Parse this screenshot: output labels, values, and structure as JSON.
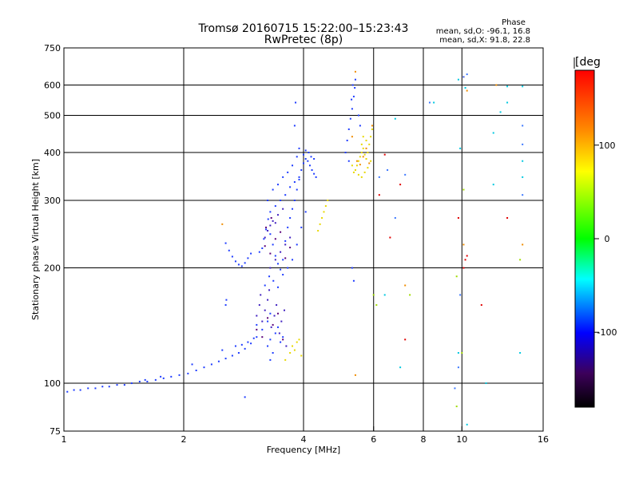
{
  "chart_data": {
    "type": "scatter",
    "title": "Tromsø 20160715 15:22:00–15:23:43",
    "subtitle": "RwPretec (8p)",
    "xlabel": "Frequency [MHz]",
    "ylabel": "Stationary phase Virtual Height [km]",
    "x_scale": "log",
    "y_scale": "log",
    "xlim": [
      1,
      16
    ],
    "ylim": [
      75,
      750
    ],
    "x_ticks": [
      1,
      2,
      4,
      6,
      8,
      10,
      16
    ],
    "y_ticks": [
      75,
      100,
      200,
      300,
      400,
      500,
      600,
      750
    ],
    "x_gridlines": [
      2,
      4,
      6,
      8,
      10
    ],
    "y_gridlines": [
      100,
      200,
      300,
      400,
      500,
      600
    ],
    "grid": true,
    "phase_stats": {
      "title": "Phase",
      "line_o": "mean, sd,O: -96.1, 16.8",
      "line_x": "mean, sd,X:  91.8, 22.8"
    },
    "colorbar": {
      "label": "[deg",
      "min": -180,
      "max": 180,
      "ticks": [
        100,
        0,
        -100
      ],
      "tick_labels": [
        "100",
        "0",
        "-100"
      ],
      "colors": [
        "#ff0000",
        "#ff8c00",
        "#ffff00",
        "#00ff00",
        "#00ffff",
        "#0000ff",
        "#3c005a",
        "#000000"
      ]
    },
    "series": [
      {
        "color_name": "blue",
        "color": "#1e3cff",
        "points": [
          [
            1.02,
            95
          ],
          [
            1.06,
            96
          ],
          [
            1.1,
            96
          ],
          [
            1.15,
            97
          ],
          [
            1.2,
            97
          ],
          [
            1.25,
            98
          ],
          [
            1.3,
            98
          ],
          [
            1.36,
            99
          ],
          [
            1.42,
            99
          ],
          [
            1.48,
            100
          ],
          [
            1.55,
            101
          ],
          [
            1.62,
            101
          ],
          [
            1.7,
            102
          ],
          [
            1.78,
            103
          ],
          [
            1.86,
            104
          ],
          [
            1.95,
            105
          ],
          [
            2.05,
            106
          ],
          [
            2.15,
            108
          ],
          [
            2.25,
            110
          ],
          [
            2.35,
            112
          ],
          [
            2.45,
            114
          ],
          [
            2.55,
            116
          ],
          [
            2.65,
            118
          ],
          [
            2.75,
            120
          ],
          [
            2.85,
            123
          ],
          [
            2.95,
            127
          ],
          [
            3.05,
            132
          ],
          [
            3.15,
            138
          ],
          [
            3.25,
            145
          ],
          [
            3.3,
            152
          ],
          [
            1.6,
            102
          ],
          [
            1.75,
            104
          ],
          [
            2.1,
            112
          ],
          [
            2.5,
            122
          ],
          [
            2.7,
            125
          ],
          [
            2.8,
            126
          ],
          [
            2.9,
            128
          ],
          [
            3.0,
            131
          ],
          [
            2.55,
            160
          ],
          [
            2.56,
            165
          ],
          [
            3.05,
            142
          ],
          [
            2.55,
            232
          ],
          [
            2.6,
            222
          ],
          [
            2.65,
            214
          ],
          [
            2.7,
            208
          ],
          [
            2.75,
            204
          ],
          [
            2.8,
            202
          ],
          [
            2.85,
            206
          ],
          [
            2.9,
            212
          ],
          [
            2.95,
            218
          ],
          [
            3.15,
            225
          ],
          [
            3.18,
            238
          ],
          [
            3.22,
            252
          ],
          [
            3.26,
            268
          ],
          [
            3.3,
            245
          ],
          [
            3.35,
            230
          ],
          [
            3.4,
            215
          ],
          [
            3.45,
            205
          ],
          [
            3.5,
            198
          ],
          [
            3.55,
            210
          ],
          [
            3.6,
            235
          ],
          [
            3.65,
            255
          ],
          [
            3.7,
            270
          ],
          [
            3.75,
            285
          ],
          [
            3.8,
            300
          ],
          [
            3.85,
            320
          ],
          [
            3.9,
            340
          ],
          [
            3.95,
            360
          ],
          [
            4.0,
            375
          ],
          [
            4.05,
            385
          ],
          [
            4.1,
            380
          ],
          [
            4.15,
            370
          ],
          [
            4.2,
            360
          ],
          [
            4.25,
            352
          ],
          [
            4.3,
            345
          ],
          [
            4.0,
            395
          ],
          [
            4.05,
            405
          ],
          [
            4.12,
            400
          ],
          [
            4.18,
            390
          ],
          [
            4.25,
            385
          ],
          [
            3.3,
            280
          ],
          [
            3.4,
            290
          ],
          [
            3.5,
            300
          ],
          [
            3.6,
            310
          ],
          [
            3.7,
            325
          ],
          [
            3.8,
            335
          ],
          [
            3.9,
            345
          ],
          [
            3.2,
            180
          ],
          [
            3.28,
            190
          ],
          [
            3.36,
            185
          ],
          [
            3.45,
            178
          ],
          [
            3.55,
            192
          ],
          [
            3.65,
            200
          ],
          [
            3.75,
            210
          ],
          [
            3.85,
            230
          ],
          [
            3.95,
            255
          ],
          [
            4.05,
            280
          ],
          [
            3.25,
            300
          ],
          [
            3.35,
            320
          ],
          [
            3.45,
            330
          ],
          [
            3.55,
            345
          ],
          [
            3.65,
            355
          ],
          [
            3.75,
            370
          ],
          [
            3.85,
            390
          ],
          [
            3.9,
            410
          ],
          [
            3.8,
            470
          ],
          [
            3.82,
            540
          ],
          [
            5.1,
            400
          ],
          [
            5.15,
            430
          ],
          [
            5.2,
            460
          ],
          [
            5.25,
            490
          ],
          [
            5.3,
            520
          ],
          [
            5.35,
            560
          ],
          [
            5.38,
            590
          ],
          [
            5.4,
            620
          ],
          [
            5.28,
            550
          ],
          [
            5.32,
            600
          ],
          [
            5.5,
            500
          ],
          [
            5.55,
            470
          ],
          [
            5.2,
            380
          ],
          [
            3.25,
            125
          ],
          [
            3.3,
            130
          ],
          [
            3.35,
            120
          ],
          [
            3.4,
            135
          ],
          [
            3.45,
            140
          ],
          [
            3.5,
            128
          ],
          [
            3.55,
            132
          ],
          [
            3.3,
            115
          ],
          [
            2.85,
            92
          ],
          [
            5.35,
            185
          ],
          [
            5.3,
            200
          ],
          [
            3.1,
            220
          ]
        ]
      },
      {
        "color_name": "indigo",
        "color": "#4020c0",
        "points": [
          [
            3.05,
            150
          ],
          [
            3.1,
            160
          ],
          [
            3.12,
            170
          ],
          [
            3.15,
            145
          ],
          [
            3.2,
            155
          ],
          [
            3.25,
            165
          ],
          [
            3.28,
            175
          ],
          [
            3.32,
            140
          ],
          [
            3.38,
            150
          ],
          [
            3.42,
            160
          ],
          [
            3.48,
            135
          ],
          [
            3.52,
            145
          ],
          [
            3.58,
            155
          ],
          [
            3.62,
            125
          ],
          [
            3.3,
            200
          ],
          [
            3.4,
            210
          ],
          [
            3.5,
            220
          ],
          [
            3.6,
            230
          ],
          [
            3.7,
            240
          ],
          [
            3.25,
            250
          ],
          [
            3.35,
            265
          ],
          [
            3.45,
            275
          ],
          [
            3.55,
            285
          ],
          [
            3.2,
            240
          ],
          [
            3.3,
            258
          ],
          [
            3.4,
            262
          ]
        ]
      },
      {
        "color_name": "purple",
        "color": "#5a0078",
        "points": [
          [
            3.05,
            138
          ],
          [
            3.15,
            132
          ],
          [
            3.25,
            148
          ],
          [
            3.35,
            142
          ],
          [
            3.45,
            152
          ],
          [
            3.55,
            130
          ],
          [
            3.2,
            228
          ],
          [
            3.3,
            218
          ],
          [
            3.4,
            238
          ],
          [
            3.5,
            248
          ],
          [
            3.6,
            212
          ],
          [
            3.7,
            226
          ],
          [
            3.22,
            255
          ],
          [
            3.32,
            270
          ]
        ]
      },
      {
        "color_name": "yellow",
        "color": "#e8d800",
        "points": [
          [
            5.4,
            360
          ],
          [
            5.45,
            370
          ],
          [
            5.5,
            380
          ],
          [
            5.55,
            390
          ],
          [
            5.6,
            400
          ],
          [
            5.65,
            410
          ],
          [
            5.7,
            395
          ],
          [
            5.75,
            385
          ],
          [
            5.8,
            400
          ],
          [
            5.85,
            420
          ],
          [
            5.9,
            440
          ],
          [
            5.95,
            460
          ],
          [
            5.5,
            350
          ],
          [
            5.6,
            345
          ],
          [
            5.7,
            355
          ],
          [
            5.8,
            365
          ],
          [
            5.6,
            420
          ],
          [
            5.65,
            440
          ],
          [
            5.75,
            430
          ],
          [
            4.4,
            260
          ],
          [
            4.45,
            270
          ],
          [
            4.5,
            280
          ],
          [
            4.55,
            290
          ],
          [
            4.6,
            300
          ],
          [
            4.35,
            250
          ],
          [
            3.6,
            115
          ],
          [
            3.7,
            120
          ],
          [
            3.75,
            125
          ],
          [
            3.8,
            122
          ],
          [
            3.85,
            128
          ],
          [
            3.9,
            130
          ],
          [
            3.95,
            118
          ],
          [
            5.3,
            370
          ],
          [
            5.35,
            355
          ],
          [
            5.9,
            380
          ]
        ]
      },
      {
        "color_name": "orange",
        "color": "#f08c00",
        "points": [
          [
            5.45,
            380
          ],
          [
            5.55,
            372
          ],
          [
            5.65,
            390
          ],
          [
            5.75,
            410
          ],
          [
            5.85,
            375
          ],
          [
            5.4,
            650
          ],
          [
            5.3,
            440
          ],
          [
            5.95,
            470
          ],
          [
            2.5,
            260
          ],
          [
            7.2,
            180
          ],
          [
            10.1,
            230
          ],
          [
            12.2,
            600
          ],
          [
            14.2,
            230
          ],
          [
            10.3,
            580
          ],
          [
            5.4,
            105
          ]
        ]
      },
      {
        "color_name": "red",
        "color": "#e00000",
        "points": [
          [
            6.2,
            310
          ],
          [
            6.4,
            395
          ],
          [
            6.6,
            240
          ],
          [
            7.0,
            330
          ],
          [
            7.2,
            130
          ],
          [
            10.1,
            200
          ],
          [
            10.2,
            210
          ],
          [
            10.3,
            215
          ],
          [
            11.2,
            160
          ],
          [
            13.0,
            270
          ],
          [
            9.8,
            270
          ],
          [
            10.1,
            630
          ]
        ]
      },
      {
        "color_name": "cyan",
        "color": "#00c8e0",
        "points": [
          [
            8.5,
            540
          ],
          [
            9.8,
            620
          ],
          [
            10.2,
            590
          ],
          [
            12.0,
            450
          ],
          [
            12.0,
            330
          ],
          [
            13.0,
            540
          ],
          [
            14.2,
            380
          ],
          [
            14.2,
            345
          ],
          [
            14.2,
            595
          ],
          [
            9.9,
            410
          ],
          [
            6.4,
            170
          ],
          [
            6.8,
            490
          ],
          [
            7.0,
            110
          ],
          [
            11.5,
            100
          ],
          [
            14.0,
            120
          ],
          [
            10.3,
            78
          ],
          [
            9.8,
            120
          ],
          [
            12.5,
            510
          ],
          [
            13.0,
            595
          ]
        ]
      },
      {
        "color_name": "light-blue",
        "color": "#3c78ff",
        "points": [
          [
            6.2,
            345
          ],
          [
            6.5,
            360
          ],
          [
            6.8,
            270
          ],
          [
            7.2,
            350
          ],
          [
            8.3,
            540
          ],
          [
            10.3,
            640
          ],
          [
            10.1,
            630
          ],
          [
            14.2,
            310
          ],
          [
            14.2,
            470
          ],
          [
            14.2,
            420
          ],
          [
            9.9,
            170
          ],
          [
            9.8,
            110
          ],
          [
            9.6,
            97
          ]
        ]
      },
      {
        "color_name": "green-yellow",
        "color": "#a0dc00",
        "points": [
          [
            6.1,
            160
          ],
          [
            10.0,
            120
          ],
          [
            9.7,
            190
          ],
          [
            14.0,
            210
          ],
          [
            6.0,
            170
          ],
          [
            10.1,
            320
          ],
          [
            7.4,
            170
          ],
          [
            9.7,
            87
          ]
        ]
      }
    ]
  }
}
